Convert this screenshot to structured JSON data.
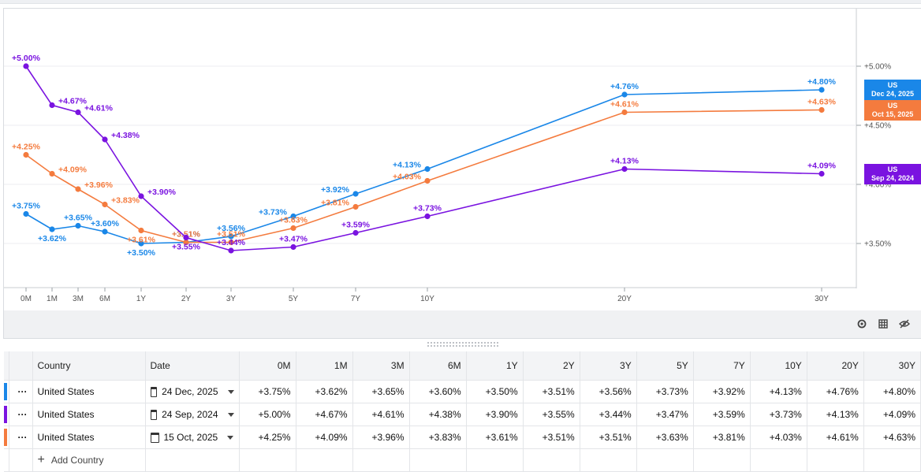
{
  "chart_data": {
    "type": "line",
    "title": "",
    "xlabel": "",
    "ylabel": "",
    "categories": [
      "0M",
      "1M",
      "3M",
      "6M",
      "1Y",
      "2Y",
      "3Y",
      "5Y",
      "7Y",
      "10Y",
      "20Y",
      "30Y"
    ],
    "y_ticks": [
      "+5.00%",
      "+4.50%",
      "+4.00%",
      "+3.50%"
    ],
    "ylim": [
      3.14,
      5.5
    ],
    "series": [
      {
        "name": "US Dec 24, 2025",
        "color": "#1a87e8",
        "values": [
          3.75,
          3.62,
          3.65,
          3.6,
          3.5,
          3.51,
          3.56,
          3.73,
          3.92,
          4.13,
          4.76,
          4.8
        ],
        "labels": [
          "+3.75%",
          "+3.62%",
          "+3.65%",
          "+3.60%",
          "+3.50%",
          "+3.51%",
          "+3.56%",
          "+3.73%",
          "+3.92%",
          "+4.13%",
          "+4.76%",
          "+4.80%"
        ]
      },
      {
        "name": "US Oct 15, 2025",
        "color": "#f47b3e",
        "values": [
          4.25,
          4.09,
          3.96,
          3.83,
          3.61,
          3.51,
          3.51,
          3.63,
          3.81,
          4.03,
          4.61,
          4.63
        ],
        "labels": [
          "+4.25%",
          "+4.09%",
          "+3.96%",
          "+3.83%",
          "+3.61%",
          "+3.51%",
          "+3.51%",
          "+3.63%",
          "+3.81%",
          "+4.03%",
          "+4.61%",
          "+4.63%"
        ]
      },
      {
        "name": "US Sep 24, 2024",
        "color": "#7a13e0",
        "values": [
          5.0,
          4.67,
          4.61,
          4.38,
          3.9,
          3.55,
          3.44,
          3.47,
          3.59,
          3.73,
          4.13,
          4.09
        ],
        "labels": [
          "+5.00%",
          "+4.67%",
          "+4.61%",
          "+4.38%",
          "+3.90%",
          "+3.55%",
          "+3.44%",
          "+3.47%",
          "+3.59%",
          "+3.73%",
          "+4.13%",
          "+4.09%"
        ]
      }
    ],
    "end_badges": [
      {
        "line1": "US",
        "line2": "Dec 24, 2025",
        "color": "#1a87e8",
        "value": 4.8
      },
      {
        "line1": "US",
        "line2": "Oct 15, 2025",
        "color": "#f47b3e",
        "value": 4.63
      },
      {
        "line1": "US",
        "line2": "Sep 24, 2024",
        "color": "#7a13e0",
        "value": 4.09
      }
    ]
  },
  "chart_toolbar": {
    "icons": [
      "camera-icon",
      "table-icon",
      "hide-icon"
    ]
  },
  "table": {
    "headers": {
      "country": "Country",
      "date": "Date",
      "tenors": [
        "0M",
        "1M",
        "3M",
        "6M",
        "1Y",
        "2Y",
        "3Y",
        "5Y",
        "7Y",
        "10Y",
        "20Y",
        "30Y"
      ]
    },
    "rows": [
      {
        "color": "#1a87e8",
        "menu": "···",
        "country": "United States",
        "date": "24 Dec, 2025",
        "values": [
          "+3.75%",
          "+3.62%",
          "+3.65%",
          "+3.60%",
          "+3.50%",
          "+3.51%",
          "+3.56%",
          "+3.73%",
          "+3.92%",
          "+4.13%",
          "+4.76%",
          "+4.80%"
        ]
      },
      {
        "color": "#7a13e0",
        "menu": "···",
        "country": "United States",
        "date": "24 Sep, 2024",
        "values": [
          "+5.00%",
          "+4.67%",
          "+4.61%",
          "+4.38%",
          "+3.90%",
          "+3.55%",
          "+3.44%",
          "+3.47%",
          "+3.59%",
          "+3.73%",
          "+4.13%",
          "+4.09%"
        ]
      },
      {
        "color": "#f47b3e",
        "menu": "···",
        "country": "United States",
        "date": "15 Oct, 2025",
        "values": [
          "+4.25%",
          "+4.09%",
          "+3.96%",
          "+3.83%",
          "+3.61%",
          "+3.51%",
          "+3.51%",
          "+3.63%",
          "+3.81%",
          "+4.03%",
          "+4.61%",
          "+4.63%"
        ]
      }
    ],
    "add_country_label": "Add Country"
  }
}
